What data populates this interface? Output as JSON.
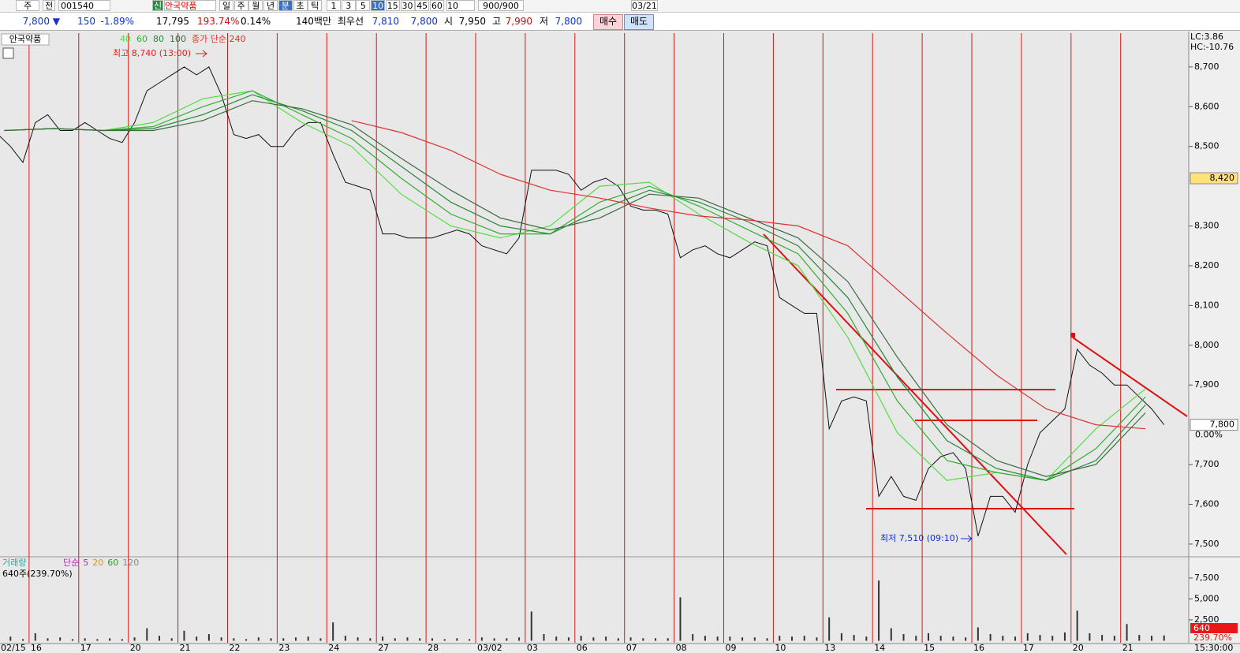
{
  "toolbar": {
    "market": "주",
    "type": "전",
    "code": "001540",
    "credit": "신",
    "name": "안국약품",
    "periods": [
      "일",
      "주",
      "월",
      "년",
      "분",
      "초",
      "틱"
    ],
    "intervals": [
      "1",
      "3",
      "5",
      "10",
      "15",
      "30",
      "45",
      "60"
    ],
    "interval_select": "10",
    "count": "900/900",
    "date": "03/21"
  },
  "quote": {
    "price": "7,800 ▼",
    "change": "150",
    "change_rate": "-1.89%",
    "volume": "17,795",
    "volume_rate": "193.74%",
    "turnover": "0.14%",
    "amount": "140백만",
    "best_label": "최우선",
    "ask": "7,810",
    "bid": "7,800",
    "open_label": "시",
    "open": "7,950",
    "high_label": "고",
    "high": "7,990",
    "low_label": "저",
    "low": "7,800",
    "buy": "매수",
    "sell": "매도"
  },
  "chart_data": {
    "type": "line",
    "title": "안국약품",
    "categories": [
      "02/15",
      "16",
      "17",
      "20",
      "21",
      "22",
      "23",
      "24",
      "27",
      "28",
      "03/02",
      "03",
      "06",
      "07",
      "08",
      "09",
      "10",
      "13",
      "14",
      "15",
      "16",
      "17",
      "20",
      "21"
    ],
    "end_label": "15:30:00",
    "ylim": [
      7470,
      8785
    ],
    "yticks": [
      {
        "value": 8700,
        "label": "8,700"
      },
      {
        "value": 8600,
        "label": "8,600"
      },
      {
        "value": 8500,
        "label": "8,500"
      },
      {
        "value": 8300,
        "label": "8,300"
      },
      {
        "value": 8200,
        "label": "8,200"
      },
      {
        "value": 8100,
        "label": "8,100"
      },
      {
        "value": 8000,
        "label": "8,000"
      },
      {
        "value": 7900,
        "label": "7,900"
      },
      {
        "value": 7700,
        "label": "7,700"
      },
      {
        "value": 7600,
        "label": "7,600"
      },
      {
        "value": 7500,
        "label": "7,500"
      }
    ],
    "top_info": [
      "LC:3.86",
      "HC:-10.76"
    ],
    "price_boxes": [
      {
        "value": 8420,
        "label": "8,420",
        "color": "#ffe27a"
      },
      {
        "value": 7800,
        "label": "7,800",
        "color": "#ffffff"
      }
    ],
    "change_label": "0.00%",
    "annotations": [
      {
        "text": "최고 8,740 (13:00)",
        "color": "#e02020"
      },
      {
        "text": "최저 7,510 (09:10)",
        "color": "#1030d0"
      }
    ],
    "series": [
      {
        "color": "#111111",
        "values": [
          [
            8550,
            8530,
            8500,
            8460
          ],
          [
            8560,
            8580,
            8540,
            8540
          ],
          [
            8560,
            8540,
            8520,
            8510
          ],
          [
            8560,
            8640,
            8660,
            8680
          ],
          [
            8700,
            8680,
            8700,
            8630
          ],
          [
            8530,
            8520,
            8530,
            8500
          ],
          [
            8500,
            8540,
            8560,
            8560
          ],
          [
            8480,
            8410,
            8400,
            8390
          ],
          [
            8280,
            8280,
            8270,
            8270
          ],
          [
            8270,
            8280,
            8290,
            8280
          ],
          [
            8250,
            8240,
            8230,
            8270
          ],
          [
            8440,
            8440,
            8440,
            8430
          ],
          [
            8390,
            8410,
            8420,
            8400
          ],
          [
            8350,
            8340,
            8340,
            8330
          ],
          [
            8220,
            8240,
            8250,
            8230
          ],
          [
            8220,
            8240,
            8260,
            8250
          ],
          [
            8120,
            8100,
            8080,
            8080
          ],
          [
            7790,
            7860,
            7870,
            7860
          ],
          [
            7620,
            7670,
            7620,
            7610
          ],
          [
            7690,
            7720,
            7730,
            7690
          ],
          [
            7520,
            7620,
            7620,
            7580
          ],
          [
            7700,
            7780,
            7810,
            7840
          ],
          [
            7990,
            7950,
            7930,
            7900
          ],
          [
            7900,
            7870,
            7840,
            7800
          ]
        ]
      },
      {
        "name": "40",
        "color": "#55dd44",
        "values": [
          8540,
          8545,
          8540,
          8560,
          8620,
          8640,
          8560,
          8500,
          8380,
          8300,
          8270,
          8300,
          8400,
          8410,
          8330,
          8260,
          8200,
          8020,
          7780,
          7660,
          7680,
          7660,
          7790,
          7890
        ]
      },
      {
        "name": "60",
        "color": "#2fb02f",
        "values": [
          8540,
          8545,
          8540,
          8550,
          8600,
          8640,
          8580,
          8520,
          8420,
          8330,
          8280,
          8280,
          8360,
          8400,
          8350,
          8290,
          8230,
          8080,
          7860,
          7710,
          7680,
          7660,
          7740,
          7870
        ]
      },
      {
        "name": "80",
        "color": "#238a3a",
        "values": [
          8540,
          8545,
          8540,
          8545,
          8580,
          8630,
          8590,
          8540,
          8450,
          8360,
          8300,
          8280,
          8340,
          8390,
          8360,
          8310,
          8250,
          8120,
          7920,
          7760,
          7690,
          7660,
          7710,
          7850
        ]
      },
      {
        "name": "100",
        "color": "#3d6b3d",
        "values": [
          8540,
          8545,
          8540,
          8540,
          8565,
          8615,
          8595,
          8555,
          8470,
          8390,
          8320,
          8290,
          8320,
          8380,
          8370,
          8320,
          8270,
          8160,
          7970,
          7800,
          7710,
          7670,
          7700,
          7830
        ]
      },
      {
        "name": "종가 단순 240",
        "color": "#e03030",
        "values": [
          null,
          null,
          null,
          null,
          null,
          null,
          null,
          8565,
          8535,
          8490,
          8430,
          8390,
          8370,
          8345,
          8325,
          8315,
          8300,
          8250,
          8140,
          8030,
          7925,
          7840,
          7800,
          7790
        ]
      }
    ],
    "volume": {
      "title": "거래량",
      "legend": [
        {
          "text": "단순",
          "color": "#c020c0"
        },
        {
          "text": "5",
          "color": "#c020c0"
        },
        {
          "text": "20",
          "color": "#e09000"
        },
        {
          "text": "60",
          "color": "#2a9a2a"
        },
        {
          "text": "120",
          "color": "#888888"
        }
      ],
      "info": "640주(239.70%)",
      "color": "#333333",
      "ylim": [
        0,
        9850
      ],
      "yticks": [
        {
          "value": 2500,
          "label": "2,500"
        },
        {
          "value": 5000,
          "label": "5,000"
        },
        {
          "value": 7500,
          "label": "7,500"
        }
      ],
      "last_box": "640",
      "last_rate": "239.70%",
      "values": [
        [
          400,
          300,
          500,
          200
        ],
        [
          900,
          300,
          400,
          200
        ],
        [
          300,
          200,
          300,
          200
        ],
        [
          400,
          1500,
          600,
          300
        ],
        [
          1200,
          500,
          800,
          400
        ],
        [
          300,
          200,
          400,
          300
        ],
        [
          300,
          400,
          500,
          300
        ],
        [
          2200,
          600,
          400,
          300
        ],
        [
          500,
          300,
          400,
          300
        ],
        [
          300,
          200,
          300,
          200
        ],
        [
          400,
          300,
          300,
          400
        ],
        [
          3500,
          800,
          500,
          400
        ],
        [
          600,
          400,
          500,
          300
        ],
        [
          400,
          300,
          300,
          300
        ],
        [
          5200,
          800,
          600,
          500
        ],
        [
          500,
          400,
          400,
          300
        ],
        [
          600,
          500,
          600,
          400
        ],
        [
          2800,
          900,
          700,
          500
        ],
        [
          7200,
          1500,
          800,
          600
        ],
        [
          900,
          600,
          500,
          400
        ],
        [
          1600,
          800,
          600,
          500
        ],
        [
          900,
          700,
          600,
          1000
        ],
        [
          3600,
          900,
          700,
          600
        ],
        [
          2000,
          700,
          600,
          640
        ]
      ]
    }
  }
}
